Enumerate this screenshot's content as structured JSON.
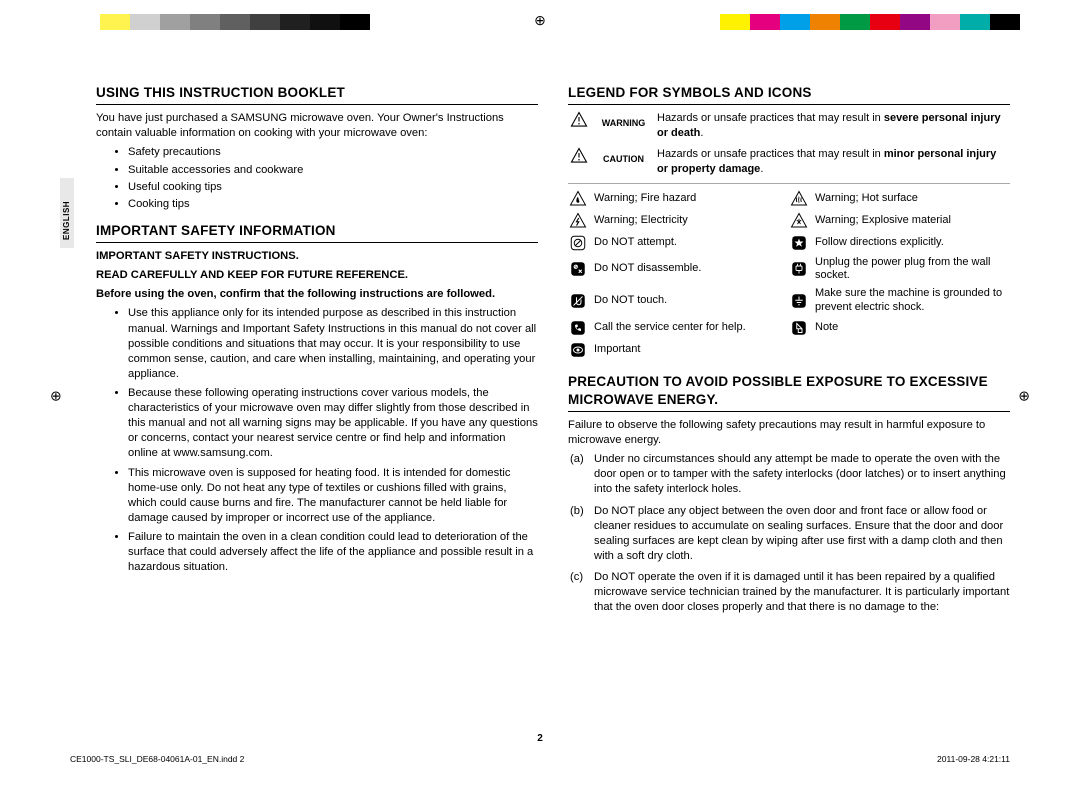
{
  "colorbar_left": [
    "#ffffff",
    "#fff44f",
    "#d0d0d0",
    "#a0a0a0",
    "#808080",
    "#606060",
    "#404040",
    "#202020",
    "#101010",
    "#000000"
  ],
  "colorbar_right": [
    "#fef200",
    "#e4007f",
    "#00a0e9",
    "#ef8200",
    "#009944",
    "#e60012",
    "#920783",
    "#f19ec2",
    "#00ada9",
    "#000000"
  ],
  "side_label": "ENGLISH",
  "left": {
    "s1_title": "USING THIS INSTRUCTION BOOKLET",
    "s1_intro": "You have just purchased a SAMSUNG microwave oven. Your Owner's Instructions contain valuable information on cooking with your microwave oven:",
    "s1_items": [
      "Safety precautions",
      "Suitable accessories and cookware",
      "Useful cooking tips",
      "Cooking tips"
    ],
    "s2_title": "IMPORTANT SAFETY INFORMATION",
    "s2_h1": "IMPORTANT SAFETY INSTRUCTIONS.",
    "s2_h2": "READ CAREFULLY AND KEEP FOR FUTURE REFERENCE.",
    "s2_h3": "Before using the oven, confirm that the following instructions are followed.",
    "s2_items": [
      "Use this appliance only for its intended purpose as described in this instruction manual. Warnings and Important Safety Instructions in this manual do not cover all possible conditions and situations that may occur. It is your responsibility to use common sense, caution, and care when installing, maintaining, and operating your appliance.",
      "Because these following operating instructions cover various models, the characteristics of your microwave oven may differ slightly from those described in this manual and not all warning signs may be applicable. If you have any questions or concerns, contact your nearest service centre or find help and information online at www.samsung.com.",
      "This microwave oven is supposed for heating food. It is intended for domestic home-use only. Do not heat any type of textiles or cushions filled with grains, which could cause burns and fire. The manufacturer cannot be held liable for damage caused by improper or incorrect use of the appliance.",
      "Failure to maintain the oven in a clean condition could lead to deterioration of the surface that could adversely affect the life of the appliance and possible result in a hazardous situation."
    ]
  },
  "right": {
    "s1_title": "LEGEND FOR SYMBOLS AND ICONS",
    "warn_label": "WARNING",
    "warn_text_a": "Hazards or unsafe practices that may result in ",
    "warn_text_b": "severe personal injury or death",
    "caut_label": "CAUTION",
    "caut_text_a": "Hazards or unsafe practices that may result in ",
    "caut_text_b": "minor personal injury or property damage",
    "symbols": [
      {
        "l": "Warning; Fire hazard",
        "r": "Warning; Hot surface"
      },
      {
        "l": "Warning; Electricity",
        "r": "Warning; Explosive material"
      },
      {
        "l": "Do NOT attempt.",
        "r": "Follow directions explicitly."
      },
      {
        "l": "Do NOT disassemble.",
        "r": "Unplug the power plug from the wall socket."
      },
      {
        "l": "Do NOT touch.",
        "r": "Make sure the machine is grounded to prevent electric shock."
      },
      {
        "l": "Call the service center for help.",
        "r": "Note"
      },
      {
        "l": "Important",
        "r": ""
      }
    ],
    "s2_title": "PRECAUTION TO AVOID POSSIBLE EXPOSURE TO EXCESSIVE MICROWAVE ENERGY.",
    "s2_intro": "Failure to observe the following safety precautions may result in harmful exposure to microwave energy.",
    "s2_items": [
      {
        "lab": "(a)",
        "txt": "Under no circumstances should any attempt be made to operate the oven with the door open or to tamper with the safety interlocks (door latches) or to insert anything into the safety interlock holes."
      },
      {
        "lab": "(b)",
        "txt": "Do NOT place any object between the oven door and front face or allow food or cleaner residues to accumulate on sealing surfaces. Ensure that the door and door sealing surfaces are kept clean by wiping after use first with a damp cloth and then with a soft dry cloth."
      },
      {
        "lab": "(c)",
        "txt": "Do NOT operate the oven if it is damaged until it has been repaired by a qualified microwave service technician trained by the manufacturer. It is particularly important that the oven door closes properly and that there is no damage to the:"
      }
    ]
  },
  "page_number": "2",
  "footer_left": "CE1000-TS_SLI_DE68-04061A-01_EN.indd   2",
  "footer_right": "2011-09-28   4:21:11"
}
